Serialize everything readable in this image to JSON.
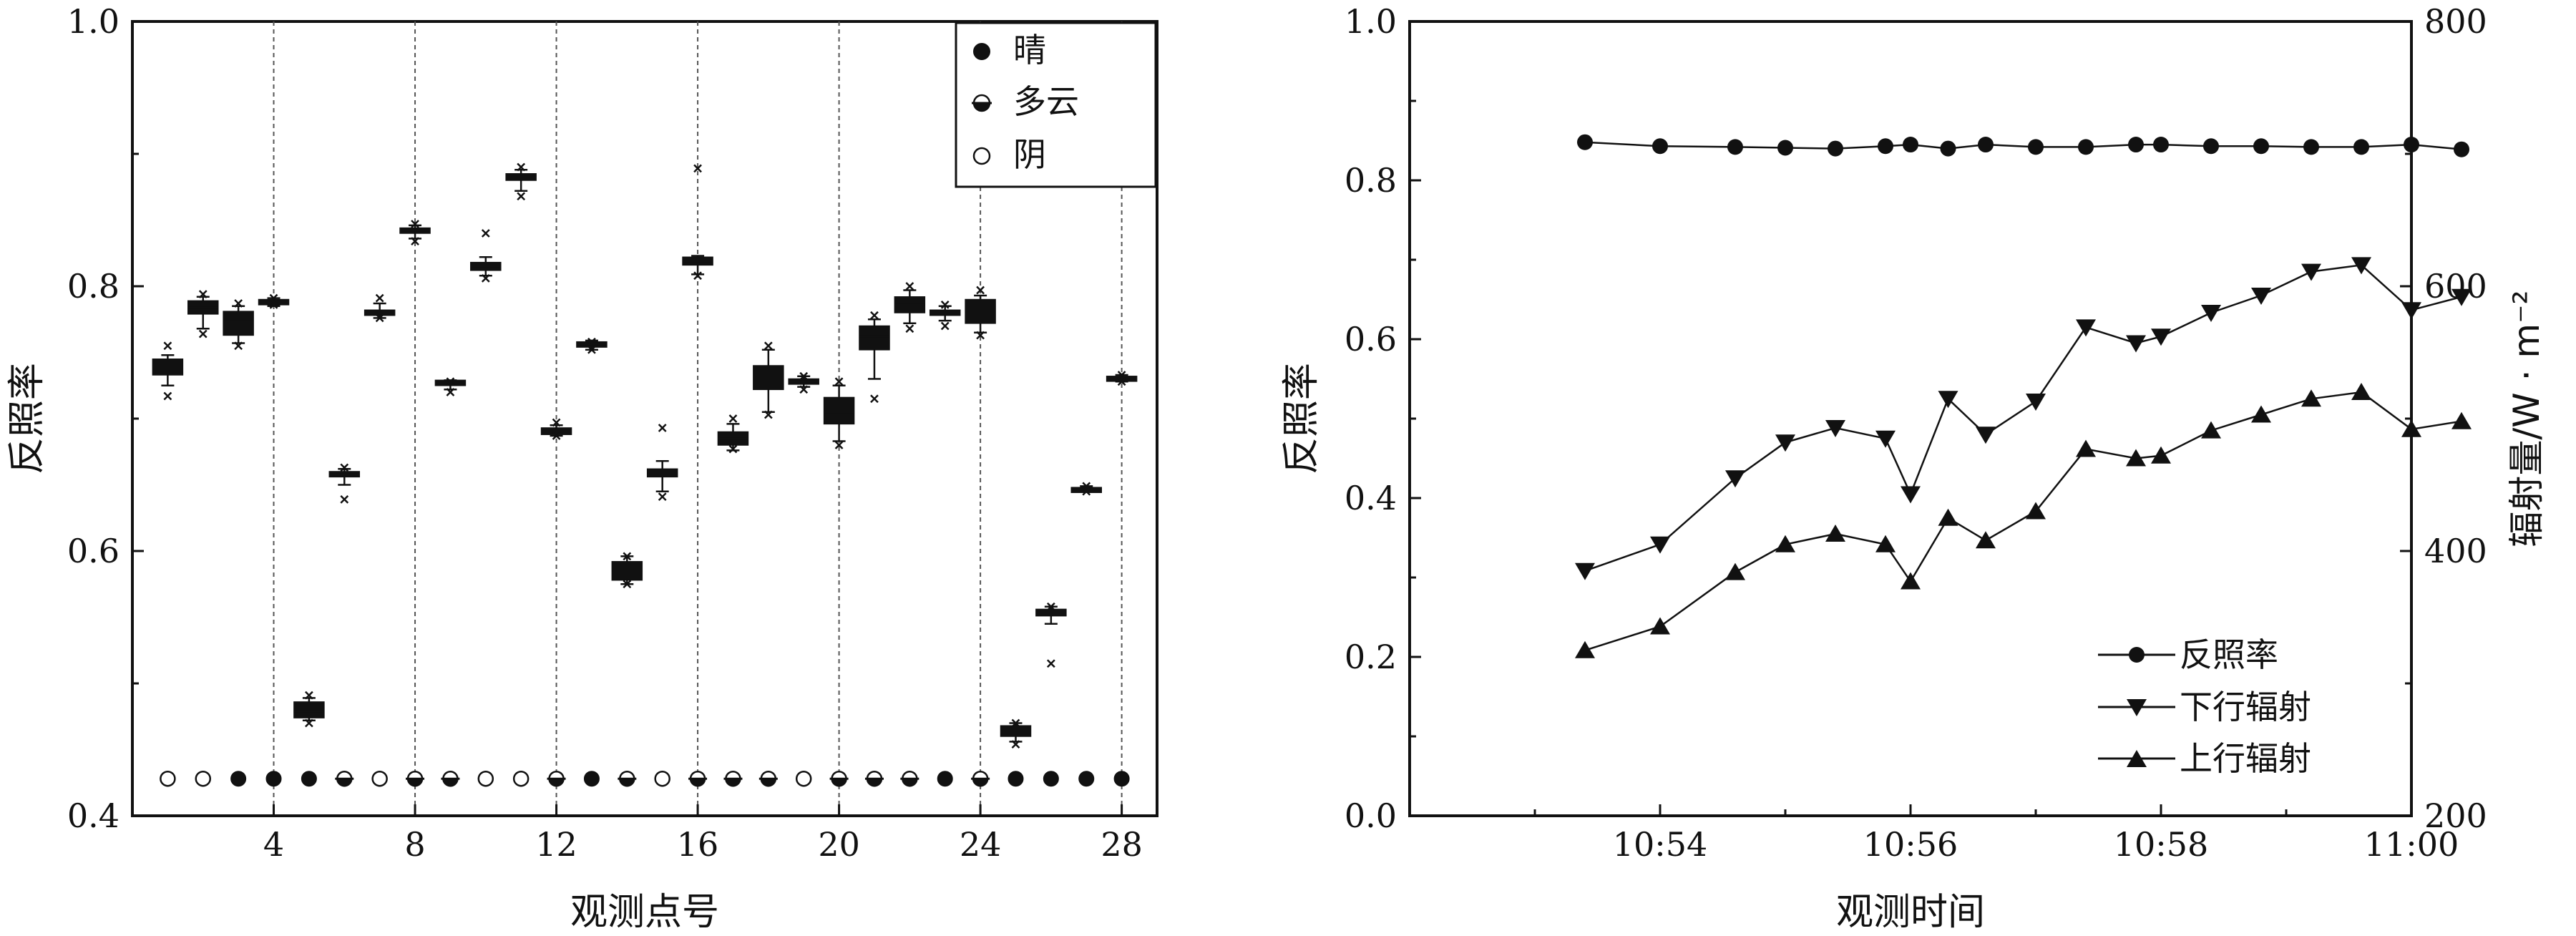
{
  "chart_data": [
    {
      "type": "box",
      "xlabel": "观测点号",
      "ylabel": "反照率",
      "xlim": [
        0,
        29
      ],
      "ylim": [
        0.4,
        1.0
      ],
      "xticks": [
        4,
        8,
        12,
        16,
        20,
        24,
        28
      ],
      "yticks": [
        0.4,
        0.6,
        0.8,
        1.0
      ],
      "ytick_labels": [
        "0.4",
        "0.6",
        "0.8",
        "1.0"
      ],
      "vlines": [
        4,
        8,
        12,
        16,
        20,
        24,
        28
      ],
      "legend": {
        "placement": "top-right",
        "entries": [
          {
            "label": "晴",
            "marker": "filled-circle"
          },
          {
            "label": "多云",
            "marker": "half-circle"
          },
          {
            "label": "阴",
            "marker": "open-circle"
          }
        ]
      },
      "boxes": [
        {
          "x": 1,
          "lo": 0.733,
          "hi": 0.745,
          "med": 0.74,
          "wlo": 0.725,
          "whi": 0.748,
          "outliers": [
            0.755,
            0.717
          ]
        },
        {
          "x": 2,
          "lo": 0.779,
          "hi": 0.789,
          "med": 0.784,
          "wlo": 0.768,
          "whi": 0.792,
          "outliers": [
            0.794,
            0.764
          ]
        },
        {
          "x": 3,
          "lo": 0.763,
          "hi": 0.781,
          "med": 0.775,
          "wlo": 0.757,
          "whi": 0.785,
          "outliers": [
            0.787,
            0.755
          ]
        },
        {
          "x": 4,
          "lo": 0.786,
          "hi": 0.79,
          "med": 0.788,
          "wlo": 0.785,
          "whi": 0.791,
          "outliers": [
            0.791,
            0.786
          ]
        },
        {
          "x": 5,
          "lo": 0.474,
          "hi": 0.486,
          "med": 0.479,
          "wlo": 0.472,
          "whi": 0.489,
          "outliers": [
            0.491,
            0.47
          ]
        },
        {
          "x": 6,
          "lo": 0.656,
          "hi": 0.66,
          "med": 0.658,
          "wlo": 0.65,
          "whi": 0.662,
          "outliers": [
            0.663,
            0.639
          ]
        },
        {
          "x": 7,
          "lo": 0.778,
          "hi": 0.782,
          "med": 0.78,
          "wlo": 0.776,
          "whi": 0.787,
          "outliers": [
            0.791,
            0.776
          ]
        },
        {
          "x": 8,
          "lo": 0.84,
          "hi": 0.844,
          "med": 0.842,
          "wlo": 0.836,
          "whi": 0.846,
          "outliers": [
            0.847,
            0.834
          ]
        },
        {
          "x": 9,
          "lo": 0.725,
          "hi": 0.729,
          "med": 0.727,
          "wlo": 0.722,
          "whi": 0.729,
          "outliers": [
            0.728,
            0.72
          ]
        },
        {
          "x": 10,
          "lo": 0.812,
          "hi": 0.818,
          "med": 0.815,
          "wlo": 0.808,
          "whi": 0.822,
          "outliers": [
            0.84,
            0.806
          ]
        },
        {
          "x": 11,
          "lo": 0.88,
          "hi": 0.885,
          "med": 0.883,
          "wlo": 0.872,
          "whi": 0.888,
          "outliers": [
            0.89,
            0.868
          ]
        },
        {
          "x": 12,
          "lo": 0.688,
          "hi": 0.693,
          "med": 0.69,
          "wlo": 0.687,
          "whi": 0.695,
          "outliers": [
            0.697,
            0.687
          ]
        },
        {
          "x": 13,
          "lo": 0.754,
          "hi": 0.758,
          "med": 0.756,
          "wlo": 0.752,
          "whi": 0.759,
          "outliers": [
            0.758,
            0.752
          ]
        },
        {
          "x": 14,
          "lo": 0.578,
          "hi": 0.592,
          "med": 0.585,
          "wlo": 0.575,
          "whi": 0.596,
          "outliers": [
            0.596,
            0.575
          ]
        },
        {
          "x": 15,
          "lo": 0.656,
          "hi": 0.662,
          "med": 0.659,
          "wlo": 0.645,
          "whi": 0.668,
          "outliers": [
            0.693,
            0.641
          ]
        },
        {
          "x": 16,
          "lo": 0.816,
          "hi": 0.822,
          "med": 0.819,
          "wlo": 0.809,
          "whi": 0.823,
          "outliers": [
            0.889,
            0.808
          ]
        },
        {
          "x": 17,
          "lo": 0.68,
          "hi": 0.69,
          "med": 0.685,
          "wlo": 0.676,
          "whi": 0.696,
          "outliers": [
            0.7,
            0.677
          ]
        },
        {
          "x": 18,
          "lo": 0.722,
          "hi": 0.74,
          "med": 0.73,
          "wlo": 0.705,
          "whi": 0.752,
          "outliers": [
            0.755,
            0.703
          ]
        },
        {
          "x": 19,
          "lo": 0.726,
          "hi": 0.73,
          "med": 0.728,
          "wlo": 0.724,
          "whi": 0.732,
          "outliers": [
            0.732,
            0.722
          ]
        },
        {
          "x": 20,
          "lo": 0.696,
          "hi": 0.716,
          "med": 0.705,
          "wlo": 0.683,
          "whi": 0.725,
          "outliers": [
            0.728,
            0.68
          ]
        },
        {
          "x": 21,
          "lo": 0.752,
          "hi": 0.77,
          "med": 0.762,
          "wlo": 0.73,
          "whi": 0.775,
          "outliers": [
            0.778,
            0.715
          ]
        },
        {
          "x": 22,
          "lo": 0.78,
          "hi": 0.792,
          "med": 0.786,
          "wlo": 0.772,
          "whi": 0.797,
          "outliers": [
            0.8,
            0.768
          ]
        },
        {
          "x": 23,
          "lo": 0.778,
          "hi": 0.782,
          "med": 0.78,
          "wlo": 0.774,
          "whi": 0.785,
          "outliers": [
            0.786,
            0.77
          ]
        },
        {
          "x": 24,
          "lo": 0.772,
          "hi": 0.79,
          "med": 0.78,
          "wlo": 0.765,
          "whi": 0.793,
          "outliers": [
            0.797,
            0.763
          ]
        },
        {
          "x": 25,
          "lo": 0.46,
          "hi": 0.468,
          "med": 0.463,
          "wlo": 0.456,
          "whi": 0.47,
          "outliers": [
            0.47,
            0.454
          ]
        },
        {
          "x": 26,
          "lo": 0.551,
          "hi": 0.556,
          "med": 0.553,
          "wlo": 0.545,
          "whi": 0.558,
          "outliers": [
            0.558,
            0.515
          ]
        },
        {
          "x": 27,
          "lo": 0.646,
          "hi": 0.648,
          "med": 0.647,
          "wlo": 0.645,
          "whi": 0.649,
          "outliers": [
            0.649,
            0.645
          ]
        },
        {
          "x": 28,
          "lo": 0.729,
          "hi": 0.732,
          "med": 0.73,
          "wlo": 0.728,
          "whi": 0.733,
          "outliers": [
            0.733,
            0.728
          ]
        }
      ],
      "weather_row": {
        "y": 0.428,
        "types": [
          "open",
          "open",
          "filled",
          "filled",
          "filled",
          "half",
          "open",
          "half",
          "half",
          "open",
          "open",
          "half",
          "filled",
          "half",
          "open",
          "half",
          "half",
          "half",
          "open",
          "half",
          "half",
          "half",
          "filled",
          "half",
          "filled",
          "filled",
          "filled",
          "filled"
        ]
      }
    },
    {
      "type": "line",
      "xlabel": "观测时间",
      "ylabel": "反照率",
      "ylabel_right": "辐射量/W · m⁻²",
      "xlim_minutes": [
        52.0,
        60.0
      ],
      "xticks": [
        "10:54",
        "10:56",
        "10:58",
        "11:00"
      ],
      "ylim": [
        0.0,
        1.0
      ],
      "yticks": [
        "0.0",
        "0.2",
        "0.4",
        "0.6",
        "0.8",
        "1.0"
      ],
      "ylim_right": [
        200,
        800
      ],
      "yticks_right": [
        "200",
        "400",
        "600",
        "800"
      ],
      "legend": {
        "placement": "bottom-right"
      },
      "x_minutes": [
        53.4,
        54.0,
        54.6,
        55.0,
        55.4,
        55.8,
        56.0,
        56.3,
        56.6,
        57.0,
        57.4,
        57.8,
        58.0,
        58.4,
        58.8,
        59.2,
        59.6,
        60.0,
        60.4
      ],
      "series": [
        {
          "name": "反照率",
          "axis": "left",
          "marker": "circle",
          "values": [
            0.848,
            0.843,
            0.842,
            0.841,
            0.84,
            0.843,
            0.845,
            0.84,
            0.845,
            0.842,
            0.842,
            0.845,
            0.845,
            0.843,
            0.843,
            0.842,
            0.842,
            0.845,
            0.839
          ]
        },
        {
          "name": "下行辐射",
          "axis": "right",
          "marker": "triangle-down",
          "values": [
            385,
            405,
            455,
            482,
            493,
            485,
            443,
            515,
            488,
            513,
            569,
            557,
            562,
            580,
            593,
            611,
            616,
            582,
            592
          ]
        },
        {
          "name": "上行辐射",
          "axis": "right",
          "marker": "triangle-up",
          "values": [
            325,
            343,
            384,
            405,
            413,
            405,
            377,
            425,
            408,
            430,
            477,
            470,
            472,
            491,
            503,
            515,
            520,
            492,
            498
          ]
        }
      ]
    }
  ]
}
